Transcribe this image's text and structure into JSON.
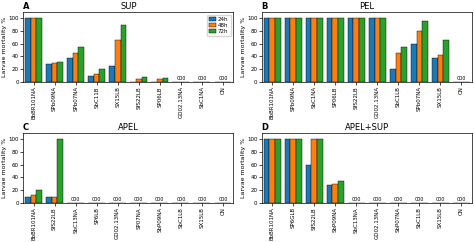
{
  "chart_data": [
    {
      "type": "bar",
      "title": "SUP",
      "panel_label": "A",
      "categories": [
        "BbBR101NA",
        "SPb09NA",
        "SPb07NA",
        "SbC11B",
        "SX15LB",
        "SfS22LB",
        "SP06LB",
        "GD02.13NA",
        "SbC1NA",
        "CN"
      ],
      "series": [
        {
          "name": "24h",
          "values": [
            100,
            28,
            38,
            10,
            25,
            0,
            0,
            0,
            0,
            0
          ]
        },
        {
          "name": "48h",
          "values": [
            100,
            30,
            45,
            13,
            65,
            4,
            4,
            0,
            0,
            0
          ]
        },
        {
          "name": "72h",
          "values": [
            100,
            32,
            55,
            20,
            90,
            7,
            6,
            0,
            0,
            0
          ]
        }
      ],
      "ylabel": "Larvae mortality %",
      "ylim": [
        0,
        110
      ],
      "yticks": [
        0,
        20,
        40,
        60,
        80,
        100
      ],
      "annotations": [
        {
          "text": "000",
          "category": "GD02.13NA"
        },
        {
          "text": "000",
          "category": "SbC1NA"
        },
        {
          "text": "000",
          "category": "CN"
        }
      ],
      "legend": "upper right"
    },
    {
      "type": "bar",
      "title": "PEL",
      "panel_label": "B",
      "categories": [
        "BbBR101NA",
        "SPb09NA",
        "SbC1NA",
        "SP06LB",
        "SfS22LB",
        "GD02.13NA",
        "SbC1LB",
        "SPb07NA",
        "SX15LB",
        "CN"
      ],
      "series": [
        {
          "name": "24h",
          "values": [
            100,
            100,
            100,
            100,
            100,
            100,
            20,
            60,
            38,
            0
          ]
        },
        {
          "name": "48h",
          "values": [
            100,
            100,
            100,
            100,
            100,
            100,
            45,
            80,
            43,
            0
          ]
        },
        {
          "name": "72h",
          "values": [
            100,
            100,
            100,
            100,
            100,
            100,
            55,
            95,
            65,
            0
          ]
        }
      ],
      "ylabel": "Larvae mortality %",
      "ylim": [
        0,
        110
      ],
      "yticks": [
        0,
        20,
        40,
        60,
        80,
        100
      ],
      "annotations": [
        {
          "text": "000",
          "category": "CN"
        }
      ]
    },
    {
      "type": "bar",
      "title": "APEL",
      "panel_label": "C",
      "categories": [
        "BbBR101NA",
        "SfS22LB",
        "SbC13NA",
        "SP6LB",
        "GD02.13NA",
        "SP07NA",
        "SbP09NA",
        "SbC1LB",
        "SX15LB",
        "CN"
      ],
      "series": [
        {
          "name": "24h",
          "values": [
            10,
            10,
            0,
            0,
            0,
            0,
            0,
            0,
            0,
            0
          ]
        },
        {
          "name": "48h",
          "values": [
            12,
            10,
            0,
            0,
            0,
            0,
            0,
            0,
            0,
            0
          ]
        },
        {
          "name": "72h",
          "values": [
            20,
            100,
            0,
            0,
            0,
            0,
            0,
            0,
            0,
            0
          ]
        }
      ],
      "ylabel": "Larvae mortality %",
      "ylim": [
        0,
        110
      ],
      "yticks": [
        0,
        20,
        40,
        60,
        80,
        100
      ],
      "annotations": [
        {
          "text": "000",
          "category": "SbC13NA"
        },
        {
          "text": "000",
          "category": "SP6LB"
        },
        {
          "text": "000",
          "category": "GD02.13NA"
        },
        {
          "text": "000",
          "category": "SP07NA"
        },
        {
          "text": "000",
          "category": "SbP09NA"
        },
        {
          "text": "000",
          "category": "SbC1LB"
        },
        {
          "text": "000",
          "category": "SX15LB"
        },
        {
          "text": "000",
          "category": "CN"
        }
      ]
    },
    {
      "type": "bar",
      "title": "APEL+SUP",
      "panel_label": "D",
      "categories": [
        "BbBR101NA",
        "SP6GLB",
        "SfS22LB",
        "SbP09NA",
        "SbC13NA",
        "GD02.13NA",
        "SbP07NA",
        "SbC1LB",
        "SX15LB",
        "CN"
      ],
      "series": [
        {
          "name": "24h",
          "values": [
            100,
            100,
            60,
            28,
            0,
            0,
            0,
            0,
            0,
            0
          ]
        },
        {
          "name": "48h",
          "values": [
            100,
            100,
            100,
            30,
            0,
            0,
            0,
            0,
            0,
            0
          ]
        },
        {
          "name": "72h",
          "values": [
            100,
            100,
            100,
            35,
            0,
            0,
            0,
            0,
            0,
            0
          ]
        }
      ],
      "ylabel": "Larvae mortality %",
      "ylim": [
        0,
        110
      ],
      "yticks": [
        0,
        20,
        40,
        60,
        80,
        100
      ],
      "annotations": [
        {
          "text": "000",
          "category": "SbC13NA"
        },
        {
          "text": "000",
          "category": "GD02.13NA"
        },
        {
          "text": "000",
          "category": "SbP07NA"
        },
        {
          "text": "000",
          "category": "SbC1LB"
        },
        {
          "text": "000",
          "category": "SX15LB"
        },
        {
          "text": "000",
          "category": "CN"
        }
      ]
    }
  ]
}
